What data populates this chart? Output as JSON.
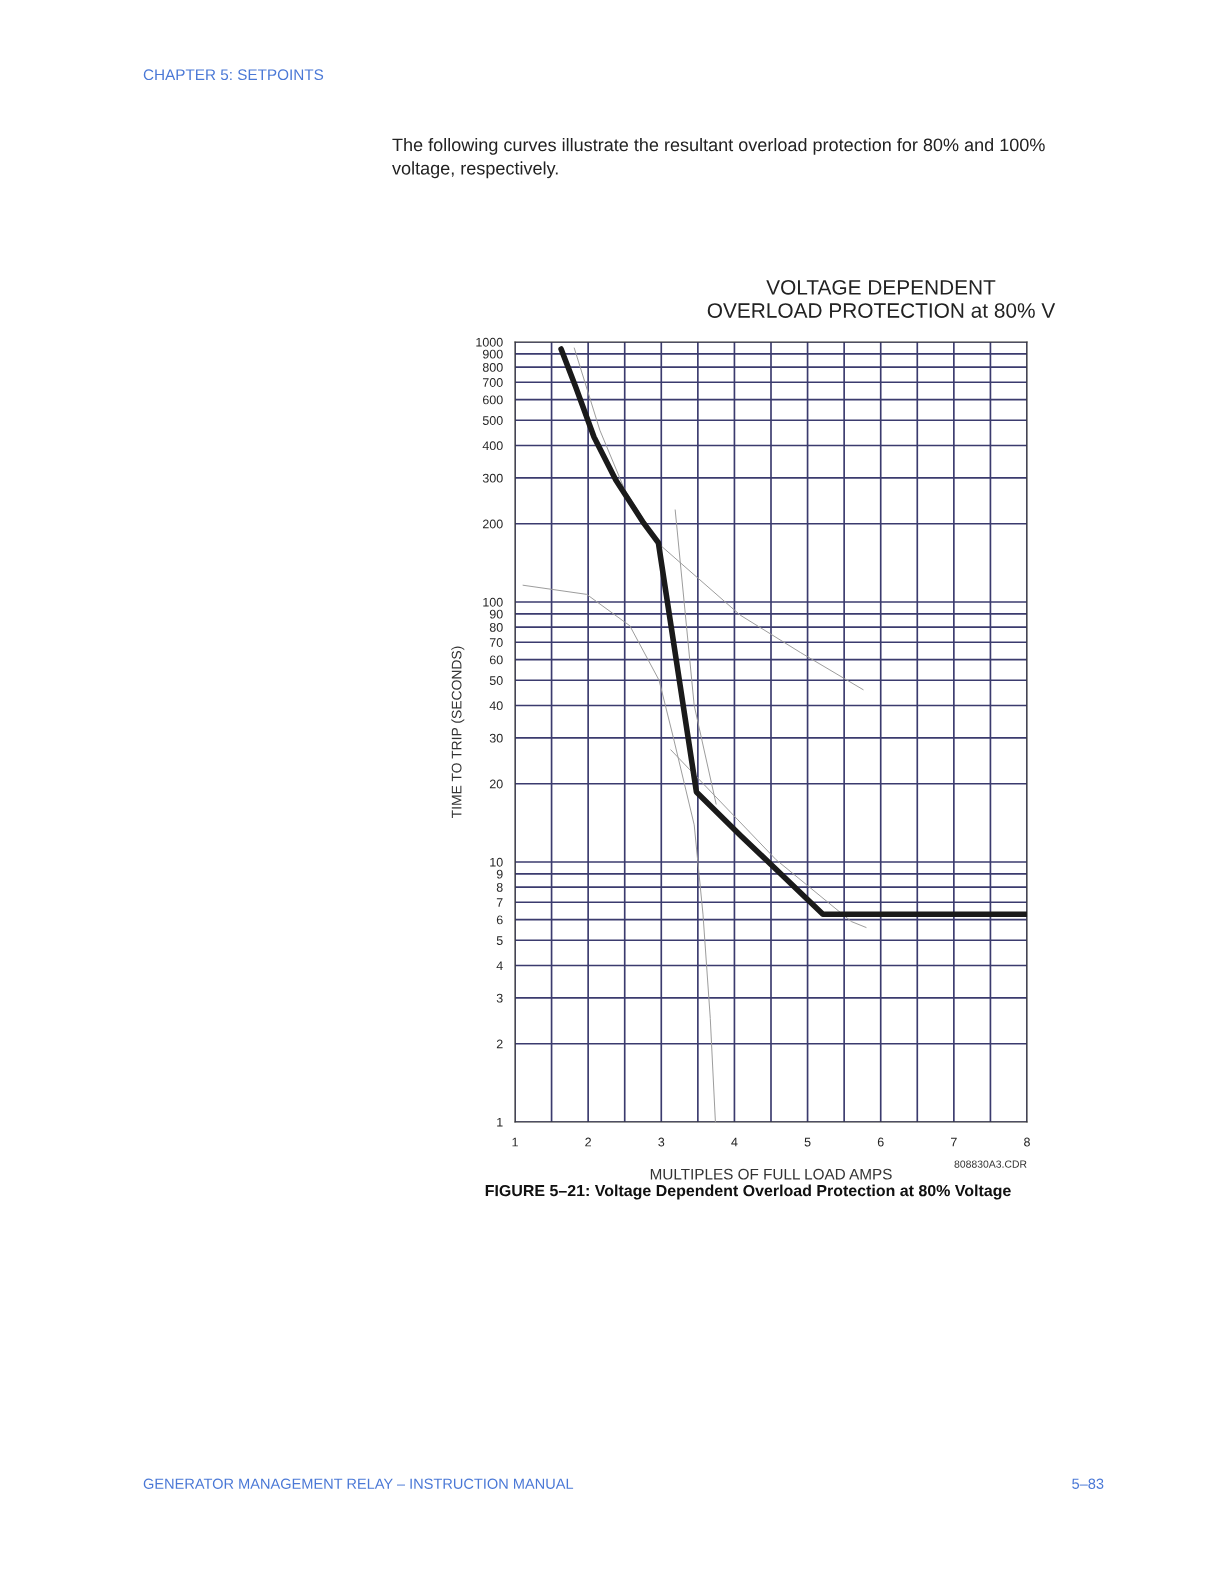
{
  "chart_data": {
    "type": "line",
    "title": "VOLTAGE DEPENDENT\nOVERLOAD PROTECTION at 80% V",
    "xlabel": "MULTIPLES OF FULL LOAD AMPS",
    "ylabel": "TIME TO TRIP (SECONDS)",
    "series": [
      {
        "color": "#999999",
        "x": [
          1.81,
          2.16,
          2.5,
          2.98,
          4.08,
          4.9,
          5.76
        ],
        "values": [
          948,
          458,
          270,
          166,
          89,
          64,
          46
        ]
      },
      {
        "color": "#999999",
        "x": [
          1.11,
          1.98,
          2.57,
          2.97,
          3.16,
          3.45,
          3.57,
          3.67,
          3.74
        ],
        "values": [
          116,
          107,
          81,
          50,
          30.5,
          13.9,
          6.3,
          2.5,
          1
        ]
      },
      {
        "color": "#999999",
        "x": [
          3.19,
          3.45,
          3.75
        ],
        "values": [
          226,
          40,
          16.7
        ]
      },
      {
        "color": "#999999",
        "x": [
          3.13,
          4.57,
          5.6,
          5.8
        ],
        "values": [
          27,
          10.2,
          5.9,
          5.6
        ]
      },
      {
        "color": "#1a1a1a",
        "x": [
          1.63,
          1.83,
          2.08,
          2.38,
          2.76,
          2.96,
          3.48,
          4.09,
          5.21,
          8
        ],
        "values": [
          940,
          671,
          431,
          294,
          201,
          169,
          18.6,
          12.6,
          6.3,
          6.3
        ]
      }
    ],
    "xlim": [
      1,
      8
    ],
    "xticks": [
      1,
      2,
      3,
      4,
      5,
      6,
      7,
      8
    ],
    "ylim": [
      1,
      1000
    ],
    "log": "y",
    "yticks": [
      1,
      2,
      3,
      4,
      5,
      6,
      7,
      8,
      9,
      10,
      20,
      30,
      40,
      50,
      60,
      70,
      80,
      90,
      100,
      200,
      300,
      400,
      500,
      600,
      700,
      800,
      900,
      1000
    ],
    "grid": true,
    "legend": false,
    "marker": "none",
    "line_style": "solid",
    "annotations": [
      "CHAPTER 5: SETPOINTS",
      "The following curves illustrate the resultant overload protection for 80% and 100%\nvoltage, respectively.",
      "808830A3.CDR",
      "FIGURE 5–21: Voltage Dependent Overload Protection at 80% Voltage",
      "GENERATOR MANAGEMENT RELAY – INSTRUCTION MANUAL",
      "5–83"
    ]
  }
}
